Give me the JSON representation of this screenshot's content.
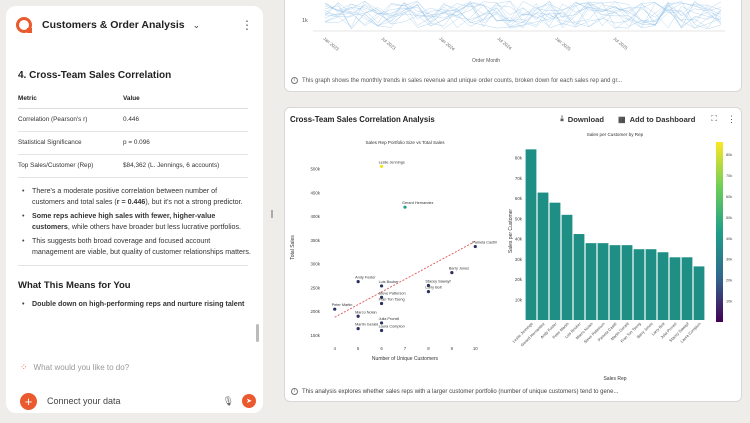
{
  "chat": {
    "title": "Customers & Order Analysis",
    "section_title": "4. Cross-Team Sales Correlation",
    "table_headers": [
      "Metric",
      "Value"
    ],
    "table_rows": [
      [
        "Correlation (Pearson's r)",
        "0.446"
      ],
      [
        "Statistical Significance",
        "p = 0.096"
      ],
      [
        "Top Sales/Customer (Rep)",
        "$84,362 (L. Jennings, 6 accounts)"
      ]
    ],
    "bullets": [
      {
        "pre": "There's a moderate positive correlation between number of customers and total sales (",
        "bold": "r = 0.446",
        "post": "), but it's not a strong predictor."
      },
      {
        "pre": "",
        "bold": "Some reps achieve high sales with fewer, higher-value customers",
        "post": ", while others have broader but less lucrative portfolios."
      },
      {
        "pre": "This suggests both broad coverage and focused account management are viable, but quality of customer relationships matters.",
        "bold": "",
        "post": ""
      }
    ],
    "sub_title": "What This Means for You",
    "sub_bullet": "Double down on high-performing reps and nurture rising talent",
    "input_placeholder": "What would you like to do?",
    "connect_label": "Connect your data"
  },
  "top_card": {
    "x_ticks": [
      "Jan 2023",
      "Jul 2023",
      "Jan 2024",
      "Jul 2024",
      "Jan 2025",
      "Jul 2025"
    ],
    "x_axis_label": "Order Month",
    "y_tick": "1k",
    "caption": "This graph shows the monthly trends in sales revenue and unique order counts, broken down for each sales rep and gr..."
  },
  "card": {
    "title": "Cross-Team Sales Correlation Analysis",
    "download": "Download",
    "add": "Add to Dashboard",
    "caption": "This analysis explores whether sales reps with a larger customer portfolio (number of unique customers) tend to gene..."
  },
  "colors": {
    "accent": "#ea5a2e",
    "teal": "#1f8f86",
    "trend": "#e05555",
    "dot_navy": "#2a2f5e"
  },
  "chart_data": [
    {
      "type": "scatter",
      "title": "Sales Rep Portfolio Size vs Total Sales",
      "xlabel": "Number of Unique Customers",
      "ylabel": "Total Sales",
      "xlim": [
        3.5,
        10.5
      ],
      "ylim": [
        140000,
        530000
      ],
      "x_ticks": [
        4,
        5,
        6,
        7,
        8,
        9,
        10
      ],
      "y_ticks": [
        "150k",
        "200k",
        "250k",
        "300k",
        "350k",
        "400k",
        "450k",
        "500k"
      ],
      "y_tick_values": [
        150000,
        200000,
        250000,
        300000,
        350000,
        400000,
        450000,
        500000
      ],
      "points": [
        {
          "label": "Leslie Jennings",
          "x": 6,
          "y": 506000,
          "color": "#f0e31a"
        },
        {
          "label": "Gerard Hernandez",
          "x": 7,
          "y": 420000,
          "color": "#1f9e89"
        },
        {
          "label": "Pamela Castill",
          "x": 10,
          "y": 337000,
          "color": "#2a2f5e"
        },
        {
          "label": "Barry Jones",
          "x": 9,
          "y": 282000,
          "color": "#2a2f5e"
        },
        {
          "label": "Andy Foster",
          "x": 5,
          "y": 263000,
          "color": "#2a2f5e"
        },
        {
          "label": "Luis Booker",
          "x": 6,
          "y": 254000,
          "color": "#2a2f5e"
        },
        {
          "label": "Stacey Sawayf",
          "x": 8,
          "y": 255000,
          "color": "#2a2f5e"
        },
        {
          "label": "Larry Bolt",
          "x": 8,
          "y": 242000,
          "color": "#2a2f5e"
        },
        {
          "label": "Steve Patterson",
          "x": 6,
          "y": 230000,
          "color": "#2a2f5e"
        },
        {
          "label": "Fran Ton Tseng",
          "x": 6,
          "y": 217000,
          "color": "#2a2f5e"
        },
        {
          "label": "Peter Martin",
          "x": 4,
          "y": 205000,
          "color": "#2a2f5e"
        },
        {
          "label": "Marco Nolan",
          "x": 5,
          "y": 190000,
          "color": "#2a2f5e"
        },
        {
          "label": "Julia Pronell",
          "x": 6,
          "y": 176000,
          "color": "#2a2f5e"
        },
        {
          "label": "Martin Gerald",
          "x": 5,
          "y": 164000,
          "color": "#2a2f5e"
        },
        {
          "label": "Laura Compton",
          "x": 6,
          "y": 160000,
          "color": "#2a2f5e"
        }
      ],
      "trend": {
        "x": [
          4,
          10
        ],
        "y": [
          188000,
          348000
        ]
      }
    },
    {
      "type": "bar",
      "title": "Sales per Customer by Rep",
      "xlabel": "Sales Rep",
      "ylabel": "Sales per Customer",
      "ylim": [
        0,
        88000
      ],
      "y_ticks": [
        "10k",
        "20k",
        "30k",
        "40k",
        "50k",
        "60k",
        "70k",
        "80k"
      ],
      "y_tick_values": [
        10000,
        20000,
        30000,
        40000,
        50000,
        60000,
        70000,
        80000
      ],
      "categories": [
        "Leslie Jennings",
        "Gerard Hernandez",
        "Andy Foster",
        "Peter Martin",
        "Luis Booker",
        "Marco Nolan",
        "Steve Patterson",
        "Pamela Castill",
        "Martin Gerald",
        "Fran Ton Tseng",
        "Barry Jones",
        "Larry Bolt",
        "Julia Pronell",
        "Stacey Sawayf",
        "Laura Compton"
      ],
      "values": [
        84362,
        63000,
        58000,
        52000,
        42500,
        38000,
        38000,
        37000,
        37000,
        35000,
        35000,
        33500,
        31000,
        31000,
        26500
      ],
      "colorbar": {
        "ticks": [
          "10k",
          "20k",
          "30k",
          "40k",
          "50k",
          "60k",
          "70k",
          "80k"
        ],
        "colors": [
          "#440154",
          "#31688e",
          "#1f9e89",
          "#6ece58",
          "#fde725"
        ]
      }
    }
  ]
}
